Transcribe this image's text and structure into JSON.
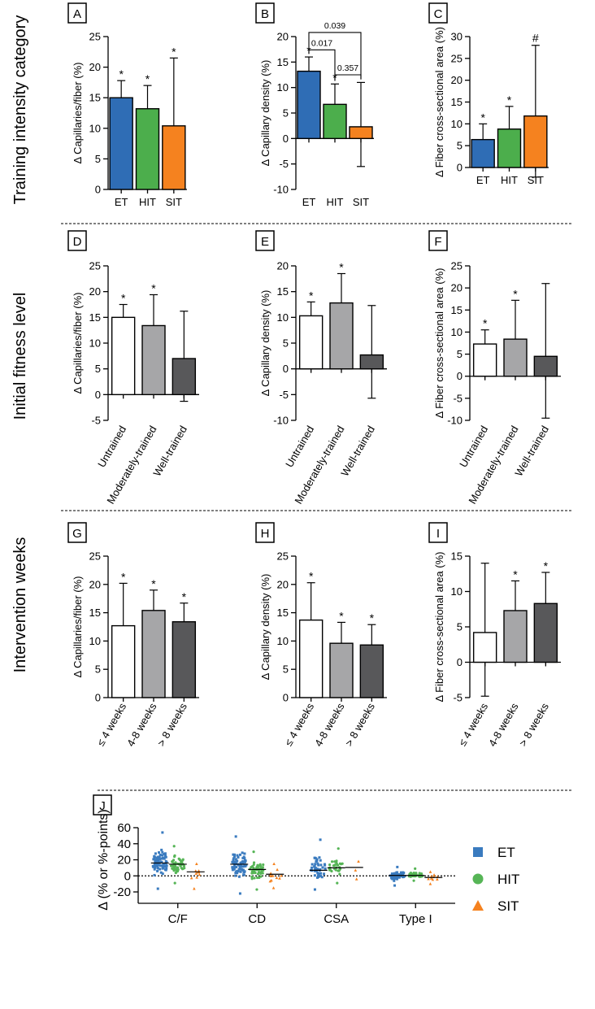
{
  "figure": {
    "sections": [
      "Training intensity category",
      "Initial fitness level",
      "Intervention weeks"
    ]
  },
  "chart_data": [
    {
      "panel": "A",
      "type": "bar",
      "section": 0,
      "categories": [
        "ET",
        "HIT",
        "SIT"
      ],
      "values": [
        15.0,
        13.2,
        10.4
      ],
      "err_low": [
        12.5,
        9.5,
        0.3
      ],
      "err_high": [
        17.8,
        17.0,
        21.5
      ],
      "marks": [
        "*",
        "*",
        "*"
      ],
      "ylabel": "Δ Capillaries/fiber (%)",
      "ylim": [
        0,
        25
      ],
      "yticks": [
        0,
        5,
        10,
        15,
        20,
        25
      ],
      "colors": [
        "#2f6db5",
        "#4cae4c",
        "#f5821f"
      ]
    },
    {
      "panel": "B",
      "type": "bar",
      "section": 0,
      "categories": [
        "ET",
        "HIT",
        "SIT"
      ],
      "values": [
        13.2,
        6.7,
        2.3
      ],
      "err_low": [
        10.3,
        2.6,
        -5.5
      ],
      "err_high": [
        16.0,
        10.7,
        11.0
      ],
      "marks": [
        "*",
        "*",
        ""
      ],
      "ylabel": "Δ Capillary density (%)",
      "ylim": [
        -10,
        20
      ],
      "yticks": [
        -10,
        -5,
        0,
        5,
        10,
        15,
        20
      ],
      "colors": [
        "#2f6db5",
        "#4cae4c",
        "#f5821f"
      ],
      "comparisons": [
        {
          "from": 0,
          "to": 2,
          "label": "0.039",
          "level": 20.8
        },
        {
          "from": 0,
          "to": 1,
          "label": "0.017",
          "level": 17.4
        },
        {
          "from": 1,
          "to": 2,
          "label": "0.357",
          "level": 12.5
        }
      ]
    },
    {
      "panel": "C",
      "type": "bar",
      "section": 0,
      "categories": [
        "ET",
        "HIT",
        "SIT"
      ],
      "values": [
        6.4,
        8.8,
        11.8
      ],
      "err_low": [
        3.0,
        3.8,
        -2.2
      ],
      "err_high": [
        10.0,
        14.0,
        28.0
      ],
      "marks": [
        "*",
        "*",
        "#"
      ],
      "ylabel": "Δ Fiber cross-sectional area (%)",
      "ylim": [
        0,
        30
      ],
      "yticks": [
        0,
        5,
        10,
        15,
        20,
        25,
        30
      ],
      "colors": [
        "#2f6db5",
        "#4cae4c",
        "#f5821f"
      ]
    },
    {
      "panel": "D",
      "type": "bar",
      "section": 1,
      "categories": [
        "Untrained",
        "Moderately-trained",
        "Well-trained"
      ],
      "values": [
        15.0,
        13.4,
        7.0
      ],
      "err_low": [
        12.5,
        7.8,
        -1.3
      ],
      "err_high": [
        17.5,
        19.4,
        16.2
      ],
      "marks": [
        "*",
        "*",
        ""
      ],
      "ylabel": "Δ Capillaries/fiber (%)",
      "ylim": [
        -5,
        25
      ],
      "yticks": [
        -5,
        0,
        5,
        10,
        15,
        20,
        25
      ],
      "colors": [
        "#ffffff",
        "#a6a6a8",
        "#58585a"
      ]
    },
    {
      "panel": "E",
      "type": "bar",
      "section": 1,
      "categories": [
        "Untrained",
        "Moderately-trained",
        "Well-trained"
      ],
      "values": [
        10.3,
        12.8,
        2.7
      ],
      "err_low": [
        7.5,
        7.2,
        -5.7
      ],
      "err_high": [
        13.0,
        18.5,
        12.3
      ],
      "marks": [
        "*",
        "*",
        ""
      ],
      "ylabel": "Δ Capillary density (%)",
      "ylim": [
        -10,
        20
      ],
      "yticks": [
        -10,
        -5,
        0,
        5,
        10,
        15,
        20
      ],
      "colors": [
        "#ffffff",
        "#a6a6a8",
        "#58585a"
      ]
    },
    {
      "panel": "F",
      "type": "bar",
      "section": 1,
      "categories": [
        "Untrained",
        "Moderately-trained",
        "Well-trained"
      ],
      "values": [
        7.3,
        8.4,
        4.5
      ],
      "err_low": [
        4.5,
        0.5,
        -9.5
      ],
      "err_high": [
        10.5,
        17.2,
        21.0
      ],
      "marks": [
        "*",
        "*",
        ""
      ],
      "ylabel": "Δ Fiber cross-sectional area (%)",
      "ylim": [
        -10,
        25
      ],
      "yticks": [
        -10,
        -5,
        0,
        5,
        10,
        15,
        20,
        25
      ],
      "colors": [
        "#ffffff",
        "#a6a6a8",
        "#58585a"
      ]
    },
    {
      "panel": "G",
      "type": "bar",
      "section": 2,
      "categories": [
        "≤ 4 weeks",
        "4-8 weeks",
        "> 8 weeks"
      ],
      "values": [
        12.7,
        15.4,
        13.4
      ],
      "err_low": [
        6.0,
        11.7,
        10.2
      ],
      "err_high": [
        20.2,
        19.0,
        16.7
      ],
      "marks": [
        "*",
        "*",
        "*"
      ],
      "ylabel": "Δ Capillaries/fiber (%)",
      "ylim": [
        0,
        25
      ],
      "yticks": [
        0,
        5,
        10,
        15,
        20,
        25
      ],
      "colors": [
        "#ffffff",
        "#a6a6a8",
        "#58585a"
      ]
    },
    {
      "panel": "H",
      "type": "bar",
      "section": 2,
      "categories": [
        "≤ 4 weeks",
        "4-8 weeks",
        "> 8 weeks"
      ],
      "values": [
        13.7,
        9.6,
        9.3
      ],
      "err_low": [
        7.7,
        6.1,
        5.9
      ],
      "err_high": [
        20.3,
        13.3,
        12.9
      ],
      "marks": [
        "*",
        "*",
        "*"
      ],
      "ylabel": "Δ Capillary density (%)",
      "ylim": [
        0,
        25
      ],
      "yticks": [
        0,
        5,
        10,
        15,
        20,
        25
      ],
      "colors": [
        "#ffffff",
        "#a6a6a8",
        "#58585a"
      ]
    },
    {
      "panel": "I",
      "type": "bar",
      "section": 2,
      "categories": [
        "≤ 4 weeks",
        "4-8 weeks",
        "> 8 weeks"
      ],
      "values": [
        4.2,
        7.3,
        8.3
      ],
      "err_low": [
        -4.8,
        3.3,
        4.2
      ],
      "err_high": [
        14.0,
        11.5,
        12.7
      ],
      "marks": [
        "",
        "*",
        "*"
      ],
      "ylabel": "Δ Fiber cross-sectional area (%)",
      "ylim": [
        -5,
        15
      ],
      "yticks": [
        -5,
        0,
        5,
        10,
        15
      ],
      "colors": [
        "#ffffff",
        "#a6a6a8",
        "#58585a"
      ]
    },
    {
      "panel": "J",
      "type": "scatter",
      "categories": [
        "C/F",
        "CD",
        "CSA",
        "Type I"
      ],
      "ylabel": "Δ (% or %-points)",
      "ylim": [
        -20,
        60
      ],
      "yticks": [
        -20,
        0,
        20,
        40,
        60
      ],
      "reference_line": 0,
      "series": [
        {
          "name": "ET",
          "color": "#3a7bbf",
          "marker": "square",
          "means": [
            16.0,
            14.5,
            7.0,
            0.5
          ],
          "spread": [
            [
              -16,
              54,
              80
            ],
            [
              -22,
              49,
              80
            ],
            [
              -17,
              45,
              45
            ],
            [
              -12,
              11,
              70
            ]
          ]
        },
        {
          "name": "HIT",
          "color": "#56b556",
          "marker": "circle",
          "means": [
            14.5,
            8.0,
            10.0,
            0.5
          ],
          "spread": [
            [
              -9,
              37,
              55
            ],
            [
              -17,
              30,
              50
            ],
            [
              -9,
              34,
              30
            ],
            [
              -6,
              9,
              45
            ]
          ]
        },
        {
          "name": "SIT",
          "color": "#f5821f",
          "marker": "triangle",
          "means": [
            5.0,
            2.0,
            10.5,
            -2.0
          ],
          "spread": [
            [
              -16,
              15,
              10
            ],
            [
              -15,
              15,
              12
            ],
            [
              -4,
              18,
              3
            ],
            [
              -10,
              5,
              10
            ]
          ]
        }
      ]
    }
  ]
}
